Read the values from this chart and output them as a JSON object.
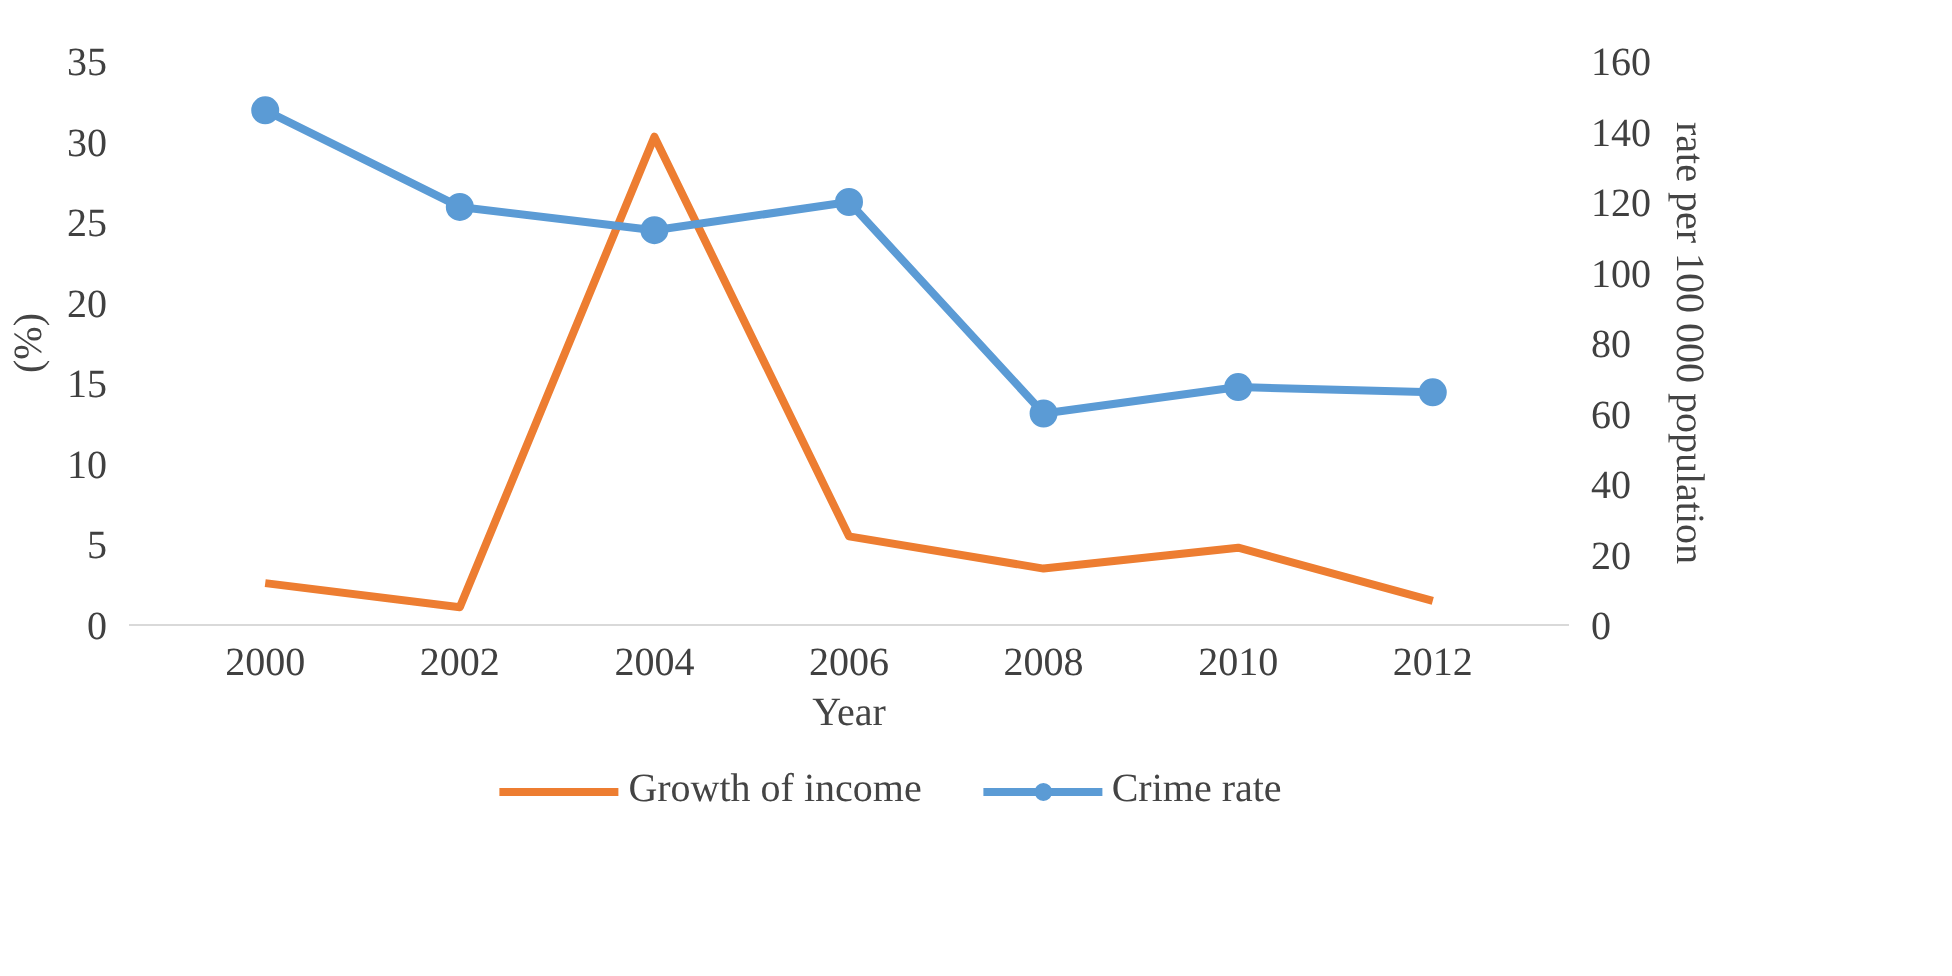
{
  "chart_data": {
    "type": "line",
    "xlabel": "Year",
    "ylabel": "(%)",
    "y2label": "rate per 100 000 population",
    "categories": [
      "2000",
      "2002",
      "2004",
      "2006",
      "2008",
      "2010",
      "2012"
    ],
    "series": [
      {
        "name": "Growth of income",
        "color": "#ed7d31",
        "values": [
          2.6,
          1.1,
          30.3,
          5.5,
          3.5,
          4.8,
          1.5
        ]
      },
      {
        "name": "Crime rate",
        "color": "#5b9bd5",
        "axis": "y2",
        "marker": "circle",
        "values": [
          146,
          118.6,
          112,
          120,
          60,
          67.5,
          66
        ]
      }
    ],
    "ylim": [
      0,
      35
    ],
    "yticks": [
      0,
      5,
      10,
      15,
      20,
      25,
      30,
      35
    ],
    "y2lim": [
      0,
      160
    ],
    "y2ticks": [
      0,
      20,
      40,
      60,
      80,
      100,
      120,
      140,
      160
    ],
    "grid": false,
    "legend": "bottom",
    "marker": "none",
    "line_style": "solid"
  }
}
